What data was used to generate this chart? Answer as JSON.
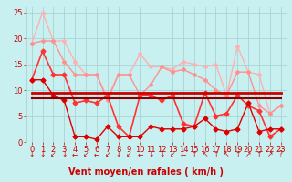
{
  "xlabel": "Vent moyen/en rafales ( km/h )",
  "xlim": [
    -0.5,
    23.5
  ],
  "ylim": [
    0,
    26
  ],
  "yticks": [
    0,
    5,
    10,
    15,
    20,
    25
  ],
  "xticks": [
    0,
    1,
    2,
    3,
    4,
    5,
    6,
    7,
    8,
    9,
    10,
    11,
    12,
    13,
    14,
    15,
    16,
    17,
    18,
    19,
    20,
    21,
    22,
    23
  ],
  "bg_color": "#c8f0f0",
  "grid_color": "#a8d4d4",
  "series": [
    {
      "y": [
        19,
        25,
        19.5,
        19.5,
        15.5,
        13,
        13,
        8.5,
        13,
        13,
        17,
        14.5,
        14.5,
        14,
        15.5,
        15,
        14.5,
        15,
        9,
        18.5,
        13.5,
        13,
        5.5,
        7
      ],
      "color": "#ffb0b0",
      "lw": 1.0,
      "marker": "D",
      "ms": 2.0
    },
    {
      "y": [
        19,
        19.5,
        19.5,
        15.5,
        13,
        13,
        13,
        8,
        13,
        13,
        9,
        11,
        14.5,
        13.5,
        14,
        13,
        12,
        10,
        9,
        13.5,
        13.5,
        7,
        5.5,
        7
      ],
      "color": "#ff9090",
      "lw": 1.0,
      "marker": "D",
      "ms": 2.0
    },
    {
      "y": [
        12,
        17.5,
        13,
        13,
        7.5,
        8,
        7.5,
        9,
        3,
        1,
        9,
        9,
        8,
        9,
        3.5,
        3,
        9.5,
        5,
        5.5,
        9,
        7,
        6,
        1,
        2.5
      ],
      "color": "#ff3333",
      "lw": 1.2,
      "marker": "D",
      "ms": 2.5
    },
    {
      "y": [
        9.5,
        9.5,
        9.5,
        9.5,
        9.5,
        9.5,
        9.5,
        9.5,
        9.5,
        9.5,
        9.5,
        9.5,
        9.5,
        9.5,
        9.5,
        9.5,
        9.5,
        9.5,
        9.5,
        9.5,
        9.5,
        9.5,
        9.5,
        9.5
      ],
      "color": "#cc0000",
      "lw": 2.0,
      "marker": null,
      "ms": 0
    },
    {
      "y": [
        8.5,
        8.5,
        8.5,
        8.5,
        8.5,
        8.5,
        8.5,
        8.5,
        8.5,
        8.5,
        8.5,
        8.5,
        8.5,
        8.5,
        8.5,
        8.5,
        8.5,
        8.5,
        8.5,
        8.5,
        8.5,
        8.5,
        8.5,
        8.5
      ],
      "color": "#880000",
      "lw": 1.5,
      "marker": null,
      "ms": 0
    },
    {
      "y": [
        12,
        12,
        9,
        8,
        1,
        1,
        0.5,
        3,
        1,
        1,
        1,
        3,
        2.5,
        2.5,
        2.5,
        3,
        4.5,
        2.5,
        2,
        2.5,
        7.5,
        2,
        2.5,
        2.5
      ],
      "color": "#dd0000",
      "lw": 1.0,
      "marker": "D",
      "ms": 2.5
    }
  ],
  "arrows": [
    "↓",
    "↓",
    "↙",
    "↓",
    "←",
    "↙",
    "←",
    "↙",
    "↓",
    "↙",
    "←",
    "↓",
    "↓",
    "↙",
    "←",
    "↑",
    "↖",
    "↑",
    "↖",
    "↑",
    "↗",
    "↑",
    "↗",
    "?"
  ],
  "xlabel_color": "#cc0000",
  "xlabel_fontsize": 7,
  "tick_color": "#cc0000",
  "tick_fontsize": 6,
  "arrow_fontsize": 5.5
}
